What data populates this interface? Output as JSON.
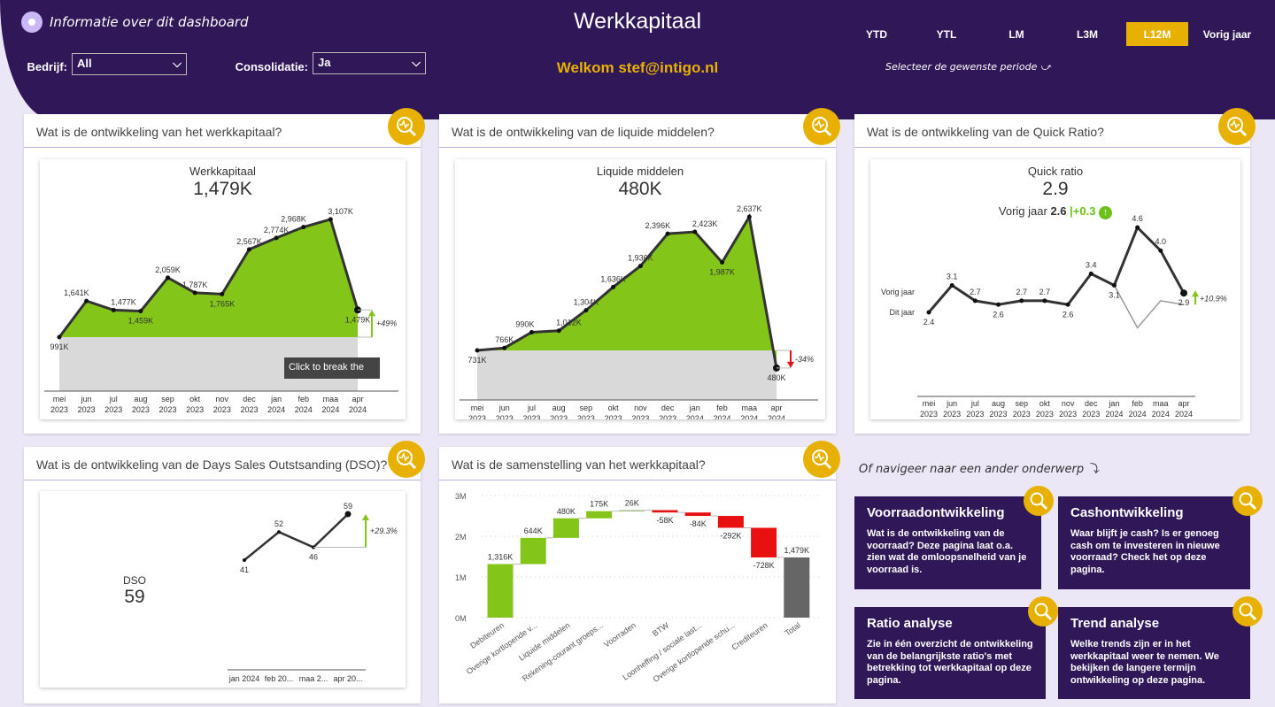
{
  "header": {
    "info_label": "Informatie over dit dashboard",
    "title": "Werkkapitaal",
    "welcome": "Welkom stef@intigo.nl",
    "filters": [
      {
        "label": "Bedrijf:",
        "value": "All"
      },
      {
        "label": "Consolidatie:",
        "value": "Ja"
      }
    ],
    "periods": [
      "YTD",
      "YTL",
      "LM",
      "L3M",
      "L12M",
      "Vorig jaar"
    ],
    "selected_period": "L12M",
    "period_hint": "Selecteer de  gewenste periode"
  },
  "colors": {
    "header": "#2f1758",
    "accent": "#e8b100",
    "positive": "#84c51a",
    "negative": "#e81010",
    "total": "#666666"
  },
  "cards": {
    "c1": "Wat is de ontwikkeling van het werkkapitaal?",
    "c2": "Wat is de ontwikkeling van de liquide middelen?",
    "c3": "Wat is de ontwikkeling van de Quick Ratio?",
    "c4": "Wat is de ontwikkeling van de Days Sales Outstsanding (DSO)?",
    "c5": "Wat is de samenstelling van het werkkapitaal?"
  },
  "tooltip": "Click to break the",
  "chart_data": [
    {
      "type": "area",
      "title": "Werkkapitaal",
      "kpi": "1,479K",
      "categories": [
        "mei 2023",
        "jun 2023",
        "jul 2023",
        "aug 2023",
        "sep 2023",
        "okt 2023",
        "nov 2023",
        "dec 2023",
        "jan 2024",
        "feb 2024",
        "maa 2024",
        "apr 2024"
      ],
      "values": [
        991,
        1641,
        1477,
        1459,
        2059,
        1787,
        1765,
        2567,
        2774,
        2968,
        3107,
        1479
      ],
      "unit": "K",
      "variance": "+49%"
    },
    {
      "type": "area",
      "title": "Liquide middelen",
      "kpi": "480K",
      "categories": [
        "mei 2023",
        "jun 2023",
        "jul 2023",
        "aug 2023",
        "sep 2023",
        "okt 2023",
        "nov 2023",
        "dec 2023",
        "jan 2024",
        "feb 2024",
        "maa 2024",
        "apr 2024"
      ],
      "values": [
        731,
        766,
        990,
        1012,
        1304,
        1636,
        1936,
        2396,
        2423,
        1987,
        2637,
        480
      ],
      "unit": "K",
      "variance": "-34%"
    },
    {
      "type": "line",
      "title": "Quick ratio",
      "kpi": "2.9",
      "comparison_label": "Vorig jaar",
      "comparison_value": "2.6",
      "delta": "+0.3",
      "categories": [
        "mei 2023",
        "jun 2023",
        "jul 2023",
        "aug 2023",
        "sep 2023",
        "okt 2023",
        "nov 2023",
        "dec 2023",
        "jan 2024",
        "feb 2024",
        "maa 2024",
        "apr 2024"
      ],
      "series": [
        {
          "name": "Dit jaar",
          "values": [
            2.4,
            3.1,
            2.7,
            2.6,
            2.7,
            2.7,
            2.6,
            3.4,
            3.1,
            4.6,
            4.0,
            2.9
          ]
        },
        {
          "name": "Vorig jaar",
          "values": [
            2.4,
            3.1,
            2.7,
            2.6,
            2.7,
            2.7,
            2.6,
            3.4,
            3.1,
            2.0,
            2.7,
            2.6
          ]
        }
      ],
      "variance": "+10.9%"
    },
    {
      "type": "line",
      "title": "DSO",
      "kpi": "59",
      "categories": [
        "jan 2024",
        "feb 20...",
        "maa 2...",
        "apr 20..."
      ],
      "values": [
        41,
        52,
        46,
        59
      ],
      "variance": "+29.3%"
    },
    {
      "type": "waterfall",
      "categories": [
        "Debiteuren",
        "Overige kortlopende v...",
        "Liquide middelen",
        "Rekening-courant groeps...",
        "Voorraden",
        "BTW",
        "Loonheffing / sociale last...",
        "Overige kortlopende schu...",
        "Crediteuren",
        "Total"
      ],
      "values": [
        1316,
        644,
        480,
        175,
        26,
        -58,
        -84,
        -292,
        -728,
        1479
      ],
      "labels": [
        "1,316K",
        "644K",
        "480K",
        "175K",
        "26K",
        "-58K",
        "-84K",
        "-292K",
        "-728K",
        "1,479K"
      ],
      "yticks": [
        "0M",
        "1M",
        "2M",
        "3M"
      ],
      "ylim": [
        0,
        3000
      ],
      "grid": true
    }
  ],
  "nav": {
    "heading": "Of navigeer naar een ander onderwerp",
    "items": [
      {
        "title": "Voorraadontwikkeling",
        "text": "Wat is de ontwikkeling van de voorraad? Deze pagina laat o.a. zien wat de omloopsnelheid van je voorraad is."
      },
      {
        "title": "Cashontwikkeling",
        "text": "Waar blijft je cash? Is er genoeg cash om te investeren in nieuwe voorraad? Check het op deze pagina."
      },
      {
        "title": "Ratio analyse",
        "text": "Zie in één overzicht de ontwikkeling van de belangrijkste ratio's met betrekking tot werkkapitaal op deze pagina."
      },
      {
        "title": "Trend analyse",
        "text": "Welke trends zijn er in het werkkapitaal weer te nemen. We bekijken de langere termijn ontwikkeling op deze pagina."
      }
    ]
  }
}
